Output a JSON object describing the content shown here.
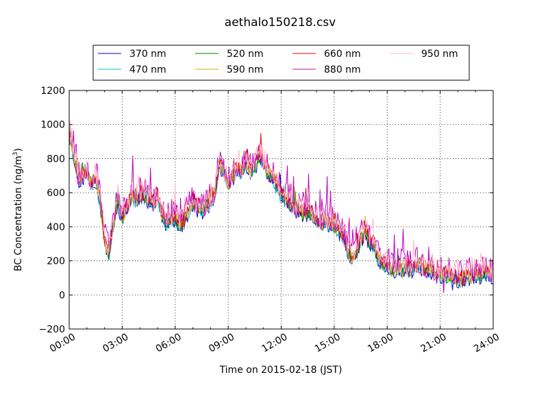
{
  "chart_data": {
    "type": "line",
    "title": "aethalo150218.csv",
    "xlabel": "Time on 2015-02-18 (JST)",
    "ylabel": "BC Concentration (ng/m",
    "ylabel_sup": "3",
    "ylabel_tail": ")",
    "xlim": [
      "00:00",
      "24:00"
    ],
    "ylim": [
      -200,
      1200
    ],
    "x_ticks": [
      "00:00",
      "03:00",
      "06:00",
      "09:00",
      "12:00",
      "15:00",
      "18:00",
      "21:00",
      "24:00"
    ],
    "x_tick_hours": [
      0,
      3,
      6,
      9,
      12,
      15,
      18,
      21,
      24
    ],
    "y_ticks": [
      "−200",
      "0",
      "200",
      "400",
      "600",
      "800",
      "1000",
      "1200"
    ],
    "y_tick_values": [
      -200,
      0,
      200,
      400,
      600,
      800,
      1000,
      1200
    ],
    "grid": true,
    "legend_position": "top",
    "x_hours": [
      0,
      0.25,
      0.5,
      0.75,
      1,
      1.25,
      1.5,
      1.75,
      2,
      2.25,
      2.5,
      2.75,
      3,
      3.25,
      3.5,
      3.75,
      4,
      4.25,
      4.5,
      4.75,
      5,
      5.25,
      5.5,
      5.75,
      6,
      6.25,
      6.5,
      6.75,
      7,
      7.25,
      7.5,
      7.75,
      8,
      8.25,
      8.5,
      8.75,
      9,
      9.25,
      9.5,
      9.75,
      10,
      10.25,
      10.5,
      10.75,
      11,
      11.25,
      11.5,
      11.75,
      12,
      12.25,
      12.5,
      12.75,
      13,
      13.25,
      13.5,
      13.75,
      14,
      14.25,
      14.5,
      14.75,
      15,
      15.25,
      15.5,
      15.75,
      16,
      16.25,
      16.5,
      16.75,
      17,
      17.25,
      17.5,
      17.75,
      18,
      18.25,
      18.5,
      18.75,
      19,
      19.25,
      19.5,
      19.75,
      20,
      20.25,
      20.5,
      20.75,
      21,
      21.25,
      21.5,
      21.75,
      22,
      22.25,
      22.5,
      22.75,
      23,
      23.25,
      23.5,
      23.75,
      24
    ],
    "base_values": [
      980,
      830,
      690,
      700,
      730,
      650,
      690,
      560,
      330,
      250,
      420,
      560,
      460,
      510,
      580,
      560,
      590,
      580,
      570,
      540,
      580,
      480,
      430,
      450,
      460,
      420,
      430,
      500,
      550,
      530,
      500,
      520,
      560,
      600,
      780,
      720,
      650,
      700,
      740,
      720,
      790,
      730,
      760,
      830,
      780,
      720,
      690,
      640,
      610,
      560,
      540,
      520,
      500,
      480,
      490,
      470,
      450,
      420,
      440,
      420,
      410,
      380,
      340,
      280,
      220,
      250,
      330,
      370,
      320,
      300,
      210,
      180,
      180,
      150,
      160,
      170,
      160,
      150,
      170,
      180,
      160,
      150,
      150,
      120,
      130,
      110,
      120,
      110,
      100,
      90,
      110,
      120,
      130,
      120,
      140,
      130,
      120,
      110,
      160
    ],
    "series": [
      {
        "name": "370 nm",
        "color": "#0000cc",
        "offset": -25,
        "noise": 40,
        "seed": 11
      },
      {
        "name": "470 nm",
        "color": "#00bfbf",
        "offset": -15,
        "noise": 40,
        "seed": 23
      },
      {
        "name": "520 nm",
        "color": "#007f00",
        "offset": -8,
        "noise": 42,
        "seed": 37
      },
      {
        "name": "590 nm",
        "color": "#c8b400",
        "offset": 0,
        "noise": 45,
        "seed": 41
      },
      {
        "name": "660 nm",
        "color": "#e00000",
        "offset": 10,
        "noise": 48,
        "seed": 53
      },
      {
        "name": "880 nm",
        "color": "#bf00bf",
        "offset": 30,
        "noise": 80,
        "seed": 67
      },
      {
        "name": "950 nm",
        "color": "#ffb6c1",
        "offset": 20,
        "noise": 70,
        "seed": 79
      }
    ]
  }
}
